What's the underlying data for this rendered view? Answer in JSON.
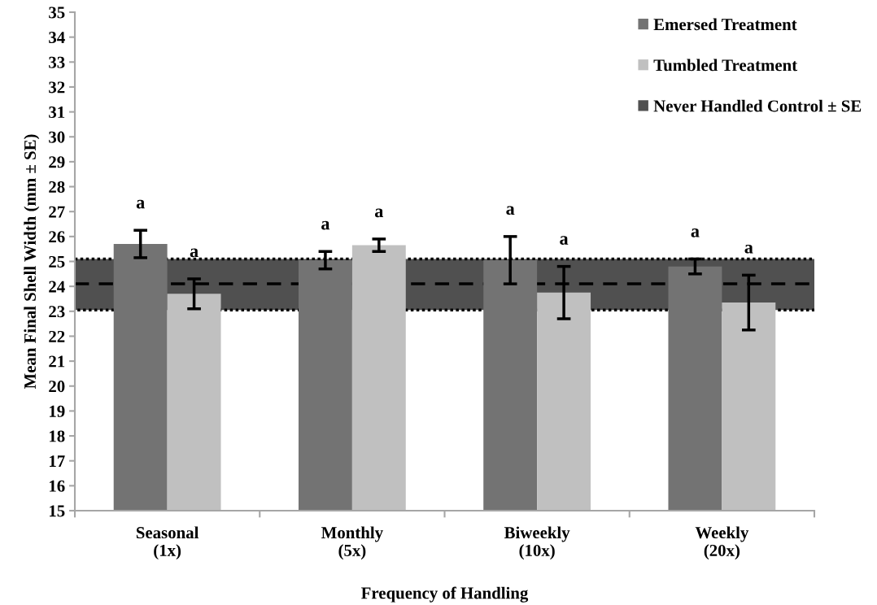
{
  "chart_data": {
    "type": "bar",
    "xlabel": "Frequency of Handling",
    "ylabel": "Mean Final Shell Width (mm ± SE)",
    "categories": [
      "Seasonal\n(1x)",
      "Monthly\n(5x)",
      "Biweekly\n(10x)",
      "Weekly\n(20x)"
    ],
    "series": [
      {
        "name": "Emersed Treatment",
        "color": "#737373",
        "values": [
          25.7,
          25.05,
          25.05,
          24.8
        ],
        "errors": [
          0.55,
          0.35,
          0.95,
          0.3
        ],
        "value_labels": [
          "a",
          "a",
          "a",
          "a"
        ]
      },
      {
        "name": "Tumbled Treatment",
        "color": "#c0c0c0",
        "values": [
          23.7,
          25.65,
          23.75,
          23.35
        ],
        "errors": [
          0.6,
          0.25,
          1.05,
          1.1
        ],
        "value_labels": [
          "a",
          "a",
          "a",
          "a"
        ]
      }
    ],
    "bands": [
      {
        "axis": "y",
        "from": 23.05,
        "to": 25.1,
        "label": "Never Handled Control ± SE",
        "color": "#505050"
      }
    ],
    "ref_lines": [
      {
        "axis": "y",
        "value": 24.1,
        "line_style": "dashed",
        "color": "#000000"
      }
    ],
    "ylim": [
      15,
      35
    ],
    "yticks": [
      15,
      16,
      17,
      18,
      19,
      20,
      21,
      22,
      23,
      24,
      25,
      26,
      27,
      28,
      29,
      30,
      31,
      32,
      33,
      34,
      35
    ],
    "legend": "top right",
    "grid": false
  }
}
